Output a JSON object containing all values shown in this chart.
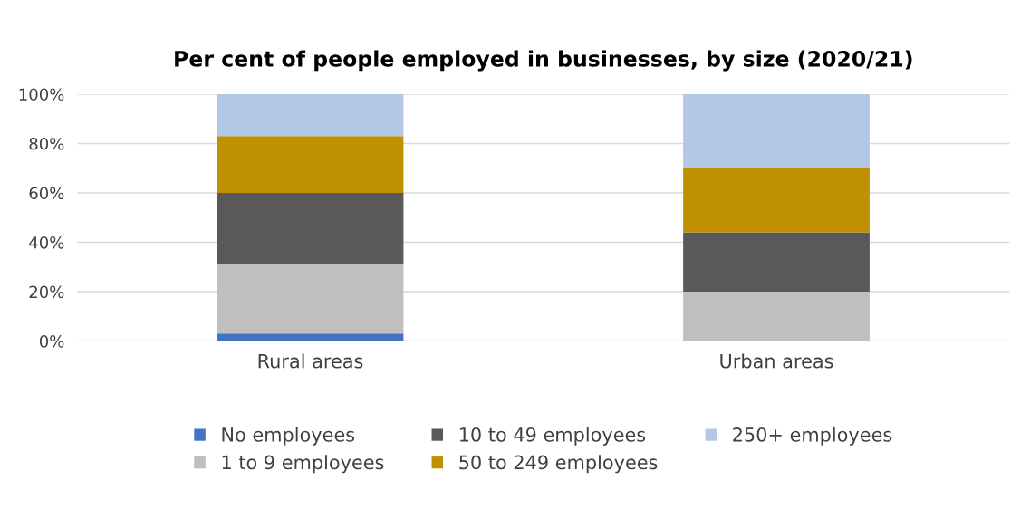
{
  "chart_data": {
    "type": "bar",
    "title": "Per cent of people employed in businesses, by size (2020/21)",
    "categories": [
      "Rural areas",
      "Urban areas"
    ],
    "stacked": true,
    "series": [
      {
        "name": "No employees",
        "color": "#4472c4",
        "values": [
          3,
          0
        ]
      },
      {
        "name": "1 to 9 employees",
        "color": "#bfbfbf",
        "values": [
          28,
          20
        ]
      },
      {
        "name": "10 to 49 employees",
        "color": "#595959",
        "values": [
          29,
          24
        ]
      },
      {
        "name": "50 to 249 employees",
        "color": "#bf9000",
        "values": [
          23,
          26
        ]
      },
      {
        "name": "250+ employees",
        "color": "#b4c7e7",
        "values": [
          17,
          30
        ]
      }
    ],
    "ylim": [
      0,
      100
    ],
    "yticks": [
      {
        "value": 0,
        "label": "0%"
      },
      {
        "value": 20,
        "label": "20%"
      },
      {
        "value": 40,
        "label": "40%"
      },
      {
        "value": 60,
        "label": "60%"
      },
      {
        "value": 80,
        "label": "80%"
      },
      {
        "value": 100,
        "label": "100%"
      }
    ],
    "grid": "y",
    "legend": "bottom"
  }
}
